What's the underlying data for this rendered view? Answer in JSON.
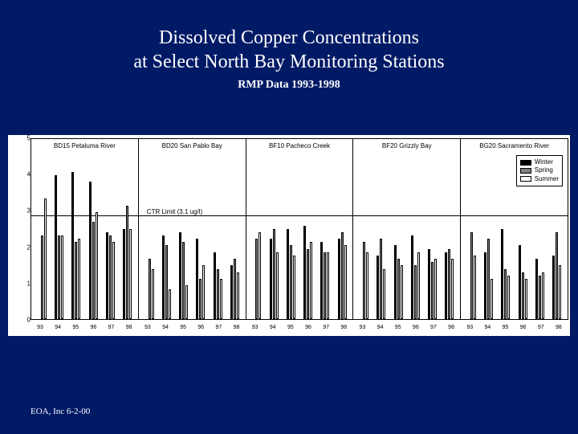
{
  "title_line1": "Dissolved Copper Concentrations",
  "title_line2": "at Select North Bay Monitoring Stations",
  "subtitle": "RMP Data 1993-1998",
  "footer": "EOA, Inc 6-2-00",
  "chart": {
    "type": "bar",
    "background_color": "#ffffff",
    "page_background_color": "#001a66",
    "ylim": [
      0,
      5
    ],
    "yticks": [
      0,
      1,
      2,
      3,
      4,
      5
    ],
    "ctr_limit": 3.1,
    "ctr_label": "CTR Limit (3.1 ug/l)",
    "xlabels": [
      "93",
      "94",
      "95",
      "96",
      "97",
      "98"
    ],
    "series": [
      {
        "name": "Winter",
        "color": "#000000"
      },
      {
        "name": "Spring",
        "color": "#808080"
      },
      {
        "name": "Summer",
        "color": "#ffffff"
      }
    ],
    "panels": [
      {
        "label": "BD15 Petaluma River",
        "years": [
          {
            "y": "93",
            "v": [
              null,
              2.5,
              3.6
            ]
          },
          {
            "y": "94",
            "v": [
              4.3,
              2.5,
              2.5
            ]
          },
          {
            "y": "95",
            "v": [
              4.4,
              2.3,
              2.4
            ]
          },
          {
            "y": "96",
            "v": [
              4.1,
              2.9,
              3.2
            ]
          },
          {
            "y": "97",
            "v": [
              2.6,
              2.5,
              2.3
            ]
          },
          {
            "y": "98",
            "v": [
              2.7,
              3.4,
              2.7
            ]
          }
        ]
      },
      {
        "label": "BD20 San Pablo Bay",
        "years": [
          {
            "y": "93",
            "v": [
              null,
              1.8,
              1.5
            ]
          },
          {
            "y": "94",
            "v": [
              2.5,
              2.2,
              0.9
            ]
          },
          {
            "y": "95",
            "v": [
              2.6,
              2.3,
              1.0
            ]
          },
          {
            "y": "96",
            "v": [
              2.4,
              1.2,
              1.6
            ]
          },
          {
            "y": "97",
            "v": [
              2.0,
              1.5,
              1.2
            ]
          },
          {
            "y": "98",
            "v": [
              1.6,
              1.8,
              1.4
            ]
          }
        ]
      },
      {
        "label": "BF10 Pacheco Creek",
        "years": [
          {
            "y": "93",
            "v": [
              null,
              2.4,
              2.6
            ]
          },
          {
            "y": "94",
            "v": [
              2.4,
              2.7,
              2.0
            ]
          },
          {
            "y": "95",
            "v": [
              2.7,
              2.2,
              1.9
            ]
          },
          {
            "y": "96",
            "v": [
              2.8,
              2.1,
              2.3
            ]
          },
          {
            "y": "97",
            "v": [
              2.3,
              2.0,
              2.0
            ]
          },
          {
            "y": "98",
            "v": [
              2.4,
              2.6,
              2.2
            ]
          }
        ]
      },
      {
        "label": "BF20 Grizzly Bay",
        "years": [
          {
            "y": "93",
            "v": [
              null,
              2.3,
              2.0
            ]
          },
          {
            "y": "94",
            "v": [
              1.9,
              2.4,
              1.5
            ]
          },
          {
            "y": "95",
            "v": [
              2.2,
              1.8,
              1.6
            ]
          },
          {
            "y": "96",
            "v": [
              2.5,
              1.6,
              2.0
            ]
          },
          {
            "y": "97",
            "v": [
              2.1,
              1.7,
              1.8
            ]
          },
          {
            "y": "98",
            "v": [
              2.0,
              2.1,
              1.8
            ]
          }
        ]
      },
      {
        "label": "BG20 Sacramento River",
        "years": [
          {
            "y": "93",
            "v": [
              null,
              2.6,
              1.9
            ]
          },
          {
            "y": "94",
            "v": [
              2.0,
              2.4,
              1.2
            ]
          },
          {
            "y": "95",
            "v": [
              2.7,
              1.5,
              1.3
            ]
          },
          {
            "y": "96",
            "v": [
              2.2,
              1.4,
              1.2
            ]
          },
          {
            "y": "97",
            "v": [
              1.8,
              1.3,
              1.4
            ]
          },
          {
            "y": "98",
            "v": [
              1.9,
              2.6,
              1.6
            ]
          }
        ]
      }
    ]
  }
}
